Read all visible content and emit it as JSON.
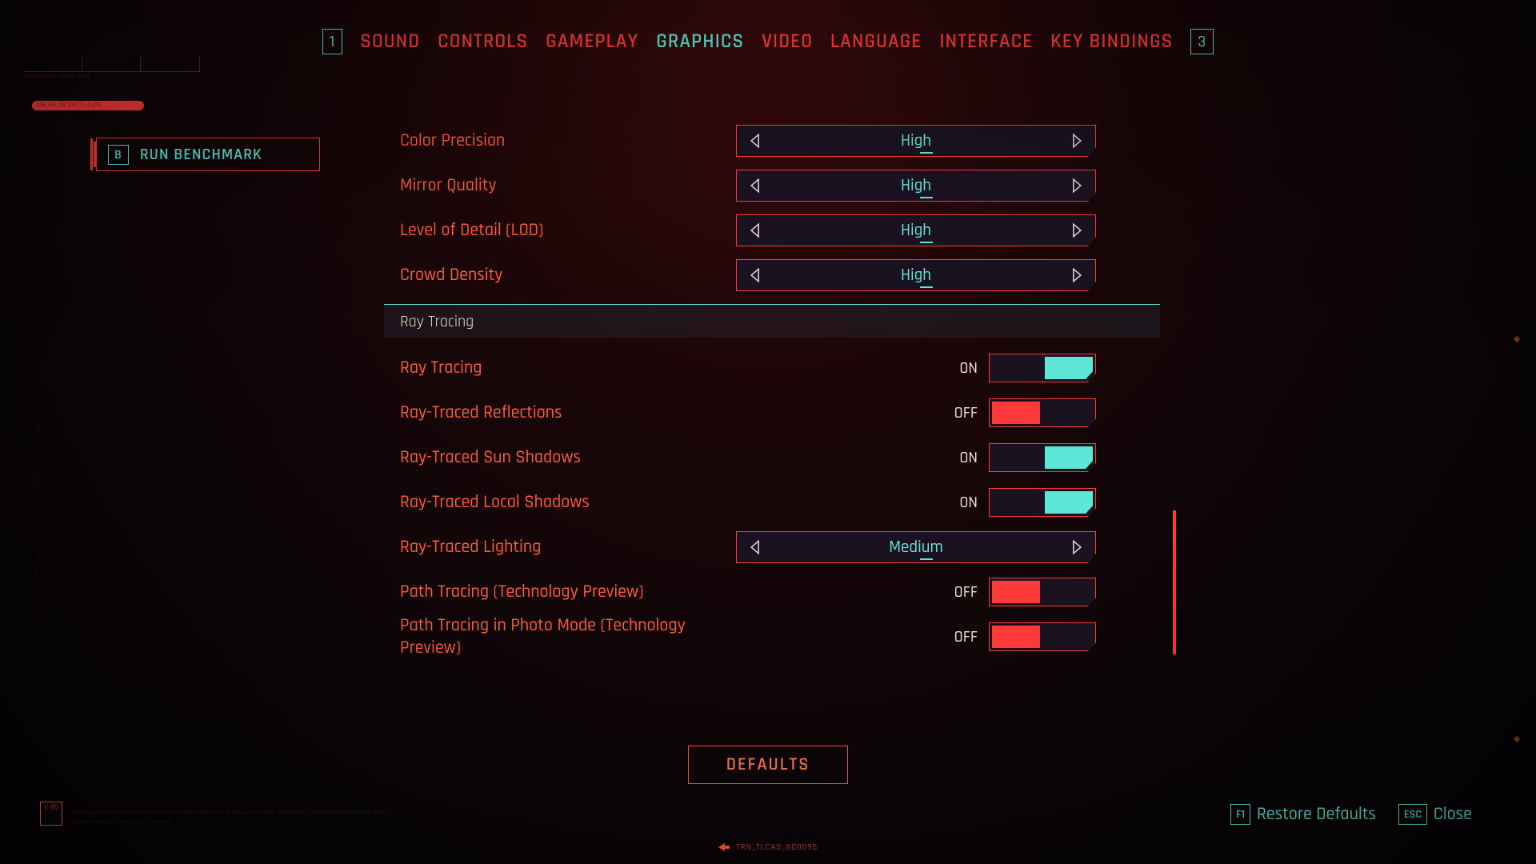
{
  "colors": {
    "accent_red": "#ff3a3a",
    "accent_cyan": "#5ee6d6",
    "text_warm": "#ff5a3a",
    "text_light": "#e8e0d8",
    "bg_dark": "#0a0508"
  },
  "nav": {
    "left_key": "1",
    "right_key": "3",
    "tabs": [
      "SOUND",
      "CONTROLS",
      "GAMEPLAY",
      "GRAPHICS",
      "VIDEO",
      "LANGUAGE",
      "INTERFACE",
      "KEY BINDINGS"
    ],
    "active_index": 3
  },
  "benchmark": {
    "key": "B",
    "label": "RUN BENCHMARK"
  },
  "settings": [
    {
      "type": "selector",
      "label": "Color Precision",
      "value": "High"
    },
    {
      "type": "selector",
      "label": "Mirror Quality",
      "value": "High"
    },
    {
      "type": "selector",
      "label": "Level of Detail (LOD)",
      "value": "High"
    },
    {
      "type": "selector",
      "label": "Crowd Density",
      "value": "High"
    }
  ],
  "section_header": "Ray Tracing",
  "ray_tracing": [
    {
      "type": "toggle",
      "label": "Ray Tracing",
      "value": "ON",
      "on": true
    },
    {
      "type": "toggle",
      "label": "Ray-Traced Reflections",
      "value": "OFF",
      "on": false
    },
    {
      "type": "toggle",
      "label": "Ray-Traced Sun Shadows",
      "value": "ON",
      "on": true
    },
    {
      "type": "toggle",
      "label": "Ray-Traced Local Shadows",
      "value": "ON",
      "on": true
    },
    {
      "type": "selector",
      "label": "Ray-Traced Lighting",
      "value": "Medium"
    },
    {
      "type": "toggle",
      "label": "Path Tracing (Technology Preview)",
      "value": "OFF",
      "on": false
    },
    {
      "type": "toggle",
      "label": "Path Tracing in Photo Mode (Technology Preview)",
      "value": "OFF",
      "on": false
    }
  ],
  "defaults_button": "DEFAULTS",
  "footer": {
    "restore": {
      "key": "F1",
      "label": "Restore Defaults"
    },
    "close": {
      "key": "ESC",
      "label": "Close"
    }
  },
  "decor": {
    "protocol_line1": "PROTOCOL 6520-A44",
    "protocol_line2": "BRK_256_CKE_201_C1_L2_A30",
    "side_text": "45_90000-00 90 AB/10 0E8000-1690",
    "version_badge": "V\n85",
    "bottom_code": "TRN_TLCAS_800095"
  }
}
